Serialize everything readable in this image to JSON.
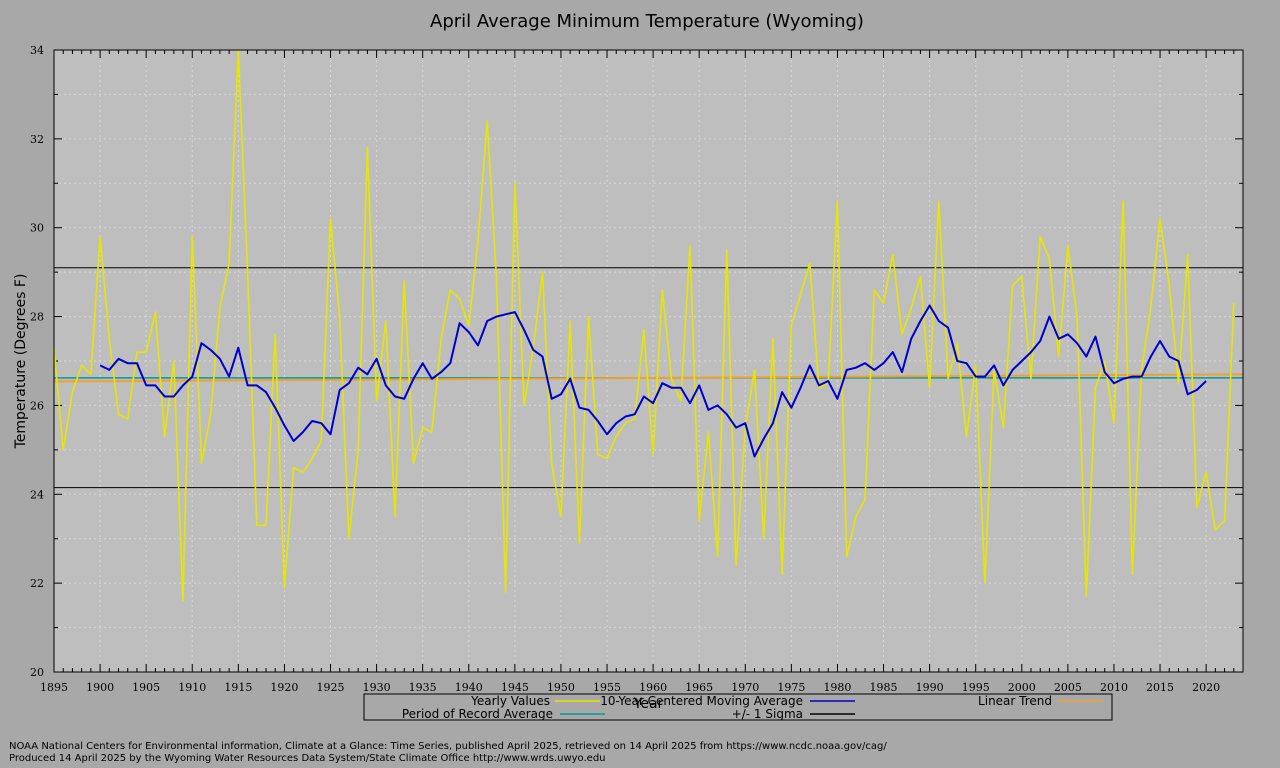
{
  "chart_data": {
    "type": "line",
    "title": "April Average Minimum Temperature (Wyoming)",
    "xlabel": "Year",
    "ylabel": "Temperature (Degrees F)",
    "xlim": [
      1895,
      2024
    ],
    "ylim": [
      20,
      34
    ],
    "x_ticks": [
      1895,
      1900,
      1905,
      1910,
      1915,
      1920,
      1925,
      1930,
      1935,
      1940,
      1945,
      1950,
      1955,
      1960,
      1965,
      1970,
      1975,
      1980,
      1985,
      1990,
      1995,
      2000,
      2005,
      2010,
      2015,
      2020
    ],
    "y_ticks": [
      20,
      22,
      24,
      26,
      28,
      30,
      32,
      34
    ],
    "grid": true,
    "legend_placement": "bottom",
    "colors": {
      "yearly": "#e6e600",
      "moving_avg": "#0000cc",
      "linear_trend": "#f0a030",
      "period_avg": "#009999",
      "sigma": "#000000",
      "plot_bg": "#bebebe",
      "page_bg": "#a8a8a8"
    },
    "series": [
      {
        "name": "Yearly Values",
        "start_year": 1895,
        "values": [
          27.3,
          25.0,
          26.3,
          26.9,
          26.7,
          29.8,
          27.5,
          25.8,
          25.7,
          27.2,
          27.2,
          28.1,
          25.3,
          27.0,
          21.6,
          29.8,
          24.7,
          25.8,
          28.2,
          29.2,
          34.0,
          29.0,
          23.3,
          23.3,
          27.6,
          21.9,
          24.6,
          24.5,
          24.8,
          25.2,
          30.2,
          28.0,
          23.0,
          25.0,
          31.8,
          26.1,
          27.9,
          23.5,
          28.8,
          24.7,
          25.5,
          25.4,
          27.5,
          28.6,
          28.4,
          27.8,
          29.7,
          32.4,
          28.9,
          21.8,
          31.0,
          26.0,
          27.3,
          29.0,
          24.7,
          23.5,
          27.9,
          22.9,
          28.0,
          24.9,
          24.8,
          25.3,
          25.6,
          25.7,
          27.7,
          24.9,
          28.6,
          26.6,
          26.1,
          29.6,
          23.4,
          25.4,
          22.6,
          29.5,
          22.4,
          25.5,
          26.8,
          23.0,
          27.5,
          22.2,
          27.8,
          28.5,
          29.2,
          26.4,
          26.5,
          30.6,
          22.6,
          23.5,
          23.9,
          28.6,
          28.3,
          29.4,
          27.6,
          28.2,
          28.9,
          26.4,
          30.6,
          26.6,
          27.4,
          25.3,
          26.9,
          22.0,
          26.8,
          25.5,
          28.7,
          28.9,
          26.6,
          29.8,
          29.3,
          27.1,
          29.6,
          28.0,
          21.7,
          26.4,
          27.0,
          25.6,
          30.6,
          22.2,
          26.8,
          28.2,
          30.2,
          28.7,
          26.5,
          29.4,
          23.7,
          24.5,
          23.2,
          23.4,
          28.3
        ]
      },
      {
        "name": "10-Year Centered Moving Average",
        "start_year": 1900,
        "values": [
          26.9,
          26.8,
          27.05,
          26.95,
          26.95,
          26.45,
          26.45,
          26.2,
          26.2,
          26.45,
          26.65,
          27.4,
          27.25,
          27.05,
          26.65,
          27.3,
          26.45,
          26.45,
          26.3,
          25.95,
          25.55,
          25.2,
          25.4,
          25.65,
          25.6,
          25.35,
          26.35,
          26.5,
          26.85,
          26.7,
          27.05,
          26.45,
          26.2,
          26.15,
          26.6,
          26.95,
          26.6,
          26.75,
          26.95,
          27.85,
          27.65,
          27.35,
          27.9,
          28.0,
          28.05,
          28.1,
          27.7,
          27.25,
          27.1,
          26.15,
          26.25,
          26.6,
          25.95,
          25.9,
          25.65,
          25.35,
          25.6,
          25.75,
          25.8,
          26.2,
          26.05,
          26.5,
          26.4,
          26.4,
          26.05,
          26.45,
          25.9,
          26.0,
          25.8,
          25.5,
          25.6,
          24.85,
          25.25,
          25.6,
          26.3,
          25.95,
          26.4,
          26.9,
          26.45,
          26.55,
          26.15,
          26.8,
          26.85,
          26.95,
          26.8,
          26.95,
          27.2,
          26.75,
          27.5,
          27.9,
          28.25,
          27.9,
          27.75,
          27.0,
          26.95,
          26.65,
          26.65,
          26.9,
          26.45,
          26.8,
          27.0,
          27.2,
          27.45,
          28.0,
          27.5,
          27.6,
          27.4,
          27.1,
          27.55,
          26.75,
          26.5,
          26.6,
          26.65,
          26.65,
          27.1,
          27.45,
          27.1,
          27.0,
          26.25,
          26.35,
          26.55
        ]
      },
      {
        "name": "Linear Trend",
        "x": [
          1895,
          2024
        ],
        "values": [
          26.54,
          26.7
        ]
      },
      {
        "name": "Period of Record Average",
        "value": 26.62
      },
      {
        "name": "+/- 1 Sigma",
        "values": [
          29.1,
          24.15
        ]
      }
    ],
    "legend": {
      "yearly": "Yearly Values",
      "moving_avg": "10-Year Centered Moving Average",
      "linear_trend": "Linear Trend",
      "period_avg": "Period of Record Average",
      "sigma": "+/- 1 Sigma"
    }
  },
  "footer": {
    "line1": "NOAA National Centers for Environmental information, Climate at a Glance: Time Series, published April 2025, retrieved on 14 April 2025 from https://www.ncdc.noaa.gov/cag/",
    "line2": "Produced 14 April 2025 by the Wyoming Water Resources Data System/State Climate Office http://www.wrds.uwyo.edu"
  }
}
